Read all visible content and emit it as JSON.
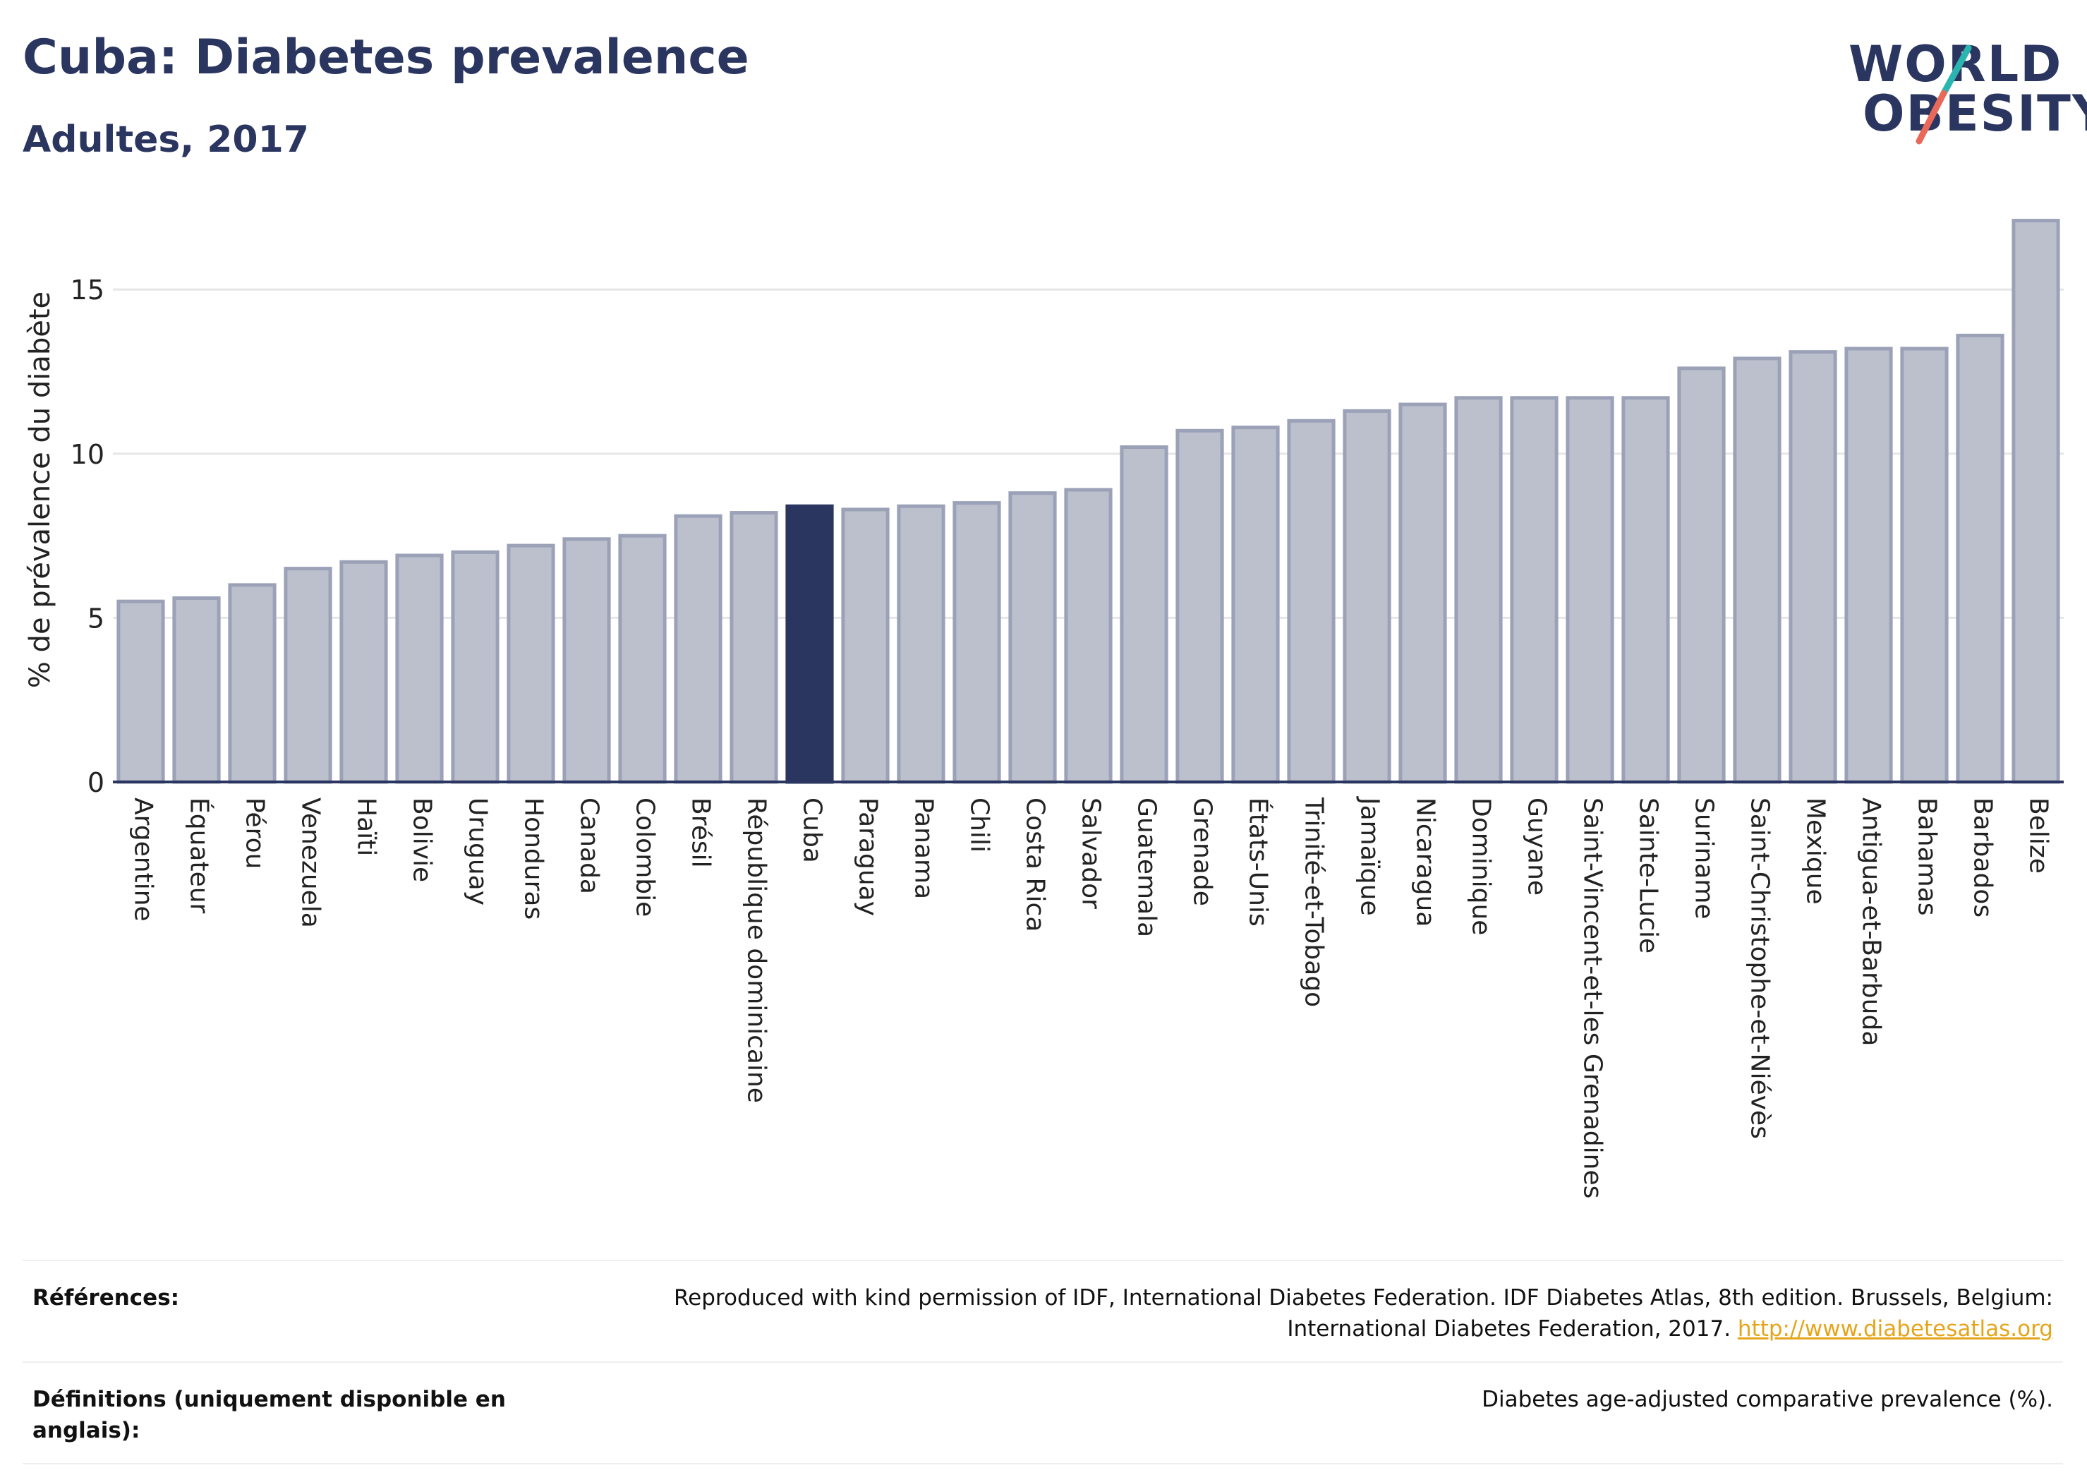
{
  "header": {
    "title": "Cuba: Diabetes prevalence",
    "subtitle": "Adultes, 2017"
  },
  "logo": {
    "line1": "WORLD",
    "line2": "OBESITY",
    "colors": {
      "text": "#2a3560",
      "slash_top": "#2bb5b0",
      "slash_bottom": "#e8695a"
    }
  },
  "chart_data": {
    "type": "bar",
    "ylabel": "% de prévalence du diabète",
    "ylim": [
      0,
      17.8
    ],
    "yticks": [
      0,
      5,
      10,
      15
    ],
    "grid": true,
    "highlight_category": "Cuba",
    "colors": {
      "bar": "#bcc0cd",
      "bar_edge": "#9ba2b8",
      "highlight": "#2a3560",
      "axis": "#2a3560",
      "grid": "#e6e6e6"
    },
    "categories": [
      "Argentine",
      "Équateur",
      "Pérou",
      "Venezuela",
      "Haïti",
      "Bolivie",
      "Uruguay",
      "Honduras",
      "Canada",
      "Colombie",
      "Brésil",
      "République dominicaine",
      "Cuba",
      "Paraguay",
      "Panama",
      "Chili",
      "Costa Rica",
      "Salvador",
      "Guatemala",
      "Grenade",
      "États-Unis",
      "Trinité-et-Tobago",
      "Jamaïque",
      "Nicaragua",
      "Dominique",
      "Guyane",
      "Saint-Vincent-et-les Grenadines",
      "Sainte-Lucie",
      "Suriname",
      "Saint-Christophe-et-Niévès",
      "Mexique",
      "Antigua-et-Barbuda",
      "Bahamas",
      "Barbados",
      "Belize"
    ],
    "values": [
      5.5,
      5.6,
      6.0,
      6.5,
      6.7,
      6.9,
      7.0,
      7.2,
      7.4,
      7.5,
      8.1,
      8.2,
      8.4,
      8.3,
      8.4,
      8.5,
      8.8,
      8.9,
      10.2,
      10.7,
      10.8,
      11.0,
      11.3,
      11.5,
      11.7,
      11.7,
      11.7,
      11.7,
      12.6,
      12.9,
      13.1,
      13.2,
      13.2,
      13.6,
      17.1
    ]
  },
  "references": {
    "label": "Références:",
    "text": "Reproduced with kind permission of IDF, International Diabetes Federation. IDF Diabetes Atlas, 8th edition. Brussels, Belgium: International Diabetes Federation, 2017.",
    "link": "http://www.diabetesatlas.org"
  },
  "definitions": {
    "label": "Définitions (uniquement disponible en anglais):",
    "text": "Diabetes age-adjusted comparative prevalence (%)."
  }
}
